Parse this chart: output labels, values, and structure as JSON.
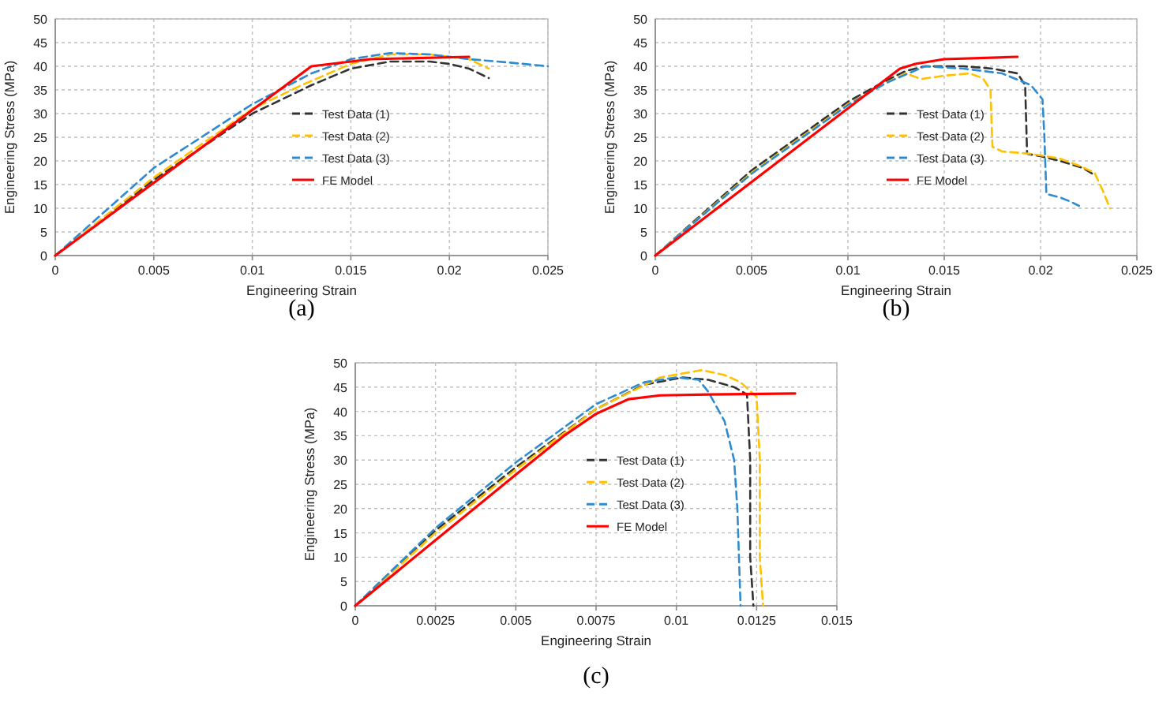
{
  "chart_data": [
    {
      "type": "line",
      "title": "(a)",
      "xlabel": "Engineering Strain",
      "ylabel": "Engineering Stress (MPa)",
      "xlim": [
        0,
        0.025
      ],
      "xticks": [
        0,
        0.005,
        0.01,
        0.015,
        0.02,
        0.025
      ],
      "ylim": [
        0,
        50
      ],
      "yticks": [
        0,
        5,
        10,
        15,
        20,
        25,
        30,
        35,
        40,
        45,
        50
      ],
      "grid": true,
      "legend": "center",
      "series": [
        {
          "name": "Test Data (1)",
          "color": "#333333",
          "line_style": "dashed",
          "x": [
            0,
            0.005,
            0.01,
            0.013,
            0.015,
            0.017,
            0.019,
            0.02,
            0.021,
            0.022
          ],
          "values": [
            0,
            16,
            30,
            36,
            39.5,
            41,
            41,
            40.5,
            39.5,
            37.5
          ]
        },
        {
          "name": "Test Data (2)",
          "color": "#ffc000",
          "line_style": "dashed",
          "x": [
            0,
            0.005,
            0.01,
            0.0125,
            0.015,
            0.017,
            0.019,
            0.021,
            0.022
          ],
          "values": [
            0,
            16.5,
            31,
            36,
            40.5,
            42.5,
            42.5,
            41.5,
            39.5
          ]
        },
        {
          "name": "Test Data (3)",
          "color": "#2e8bd0",
          "line_style": "dashed",
          "x": [
            0,
            0.005,
            0.01,
            0.013,
            0.015,
            0.017,
            0.019,
            0.021,
            0.023,
            0.025
          ],
          "values": [
            0,
            18.5,
            32,
            38.5,
            41.5,
            42.8,
            42.5,
            41.5,
            40.8,
            40
          ]
        },
        {
          "name": "FE Model",
          "color": "#ff0000",
          "line_style": "solid",
          "x": [
            0,
            0.013,
            0.016,
            0.021
          ],
          "values": [
            0,
            40,
            41.5,
            42
          ]
        }
      ]
    },
    {
      "type": "line",
      "title": "(b)",
      "xlabel": "Engineering Strain",
      "ylabel": "Engineering Stress (MPa)",
      "xlim": [
        0,
        0.025
      ],
      "xticks": [
        0,
        0.005,
        0.01,
        0.015,
        0.02,
        0.025
      ],
      "ylim": [
        0,
        50
      ],
      "yticks": [
        0,
        5,
        10,
        15,
        20,
        25,
        30,
        35,
        40,
        45,
        50
      ],
      "grid": true,
      "legend": "center",
      "series": [
        {
          "name": "Test Data (1)",
          "color": "#333333",
          "line_style": "dashed",
          "x": [
            0,
            0.005,
            0.01,
            0.012,
            0.013,
            0.014,
            0.016,
            0.0175,
            0.0188,
            0.0192,
            0.0193,
            0.02,
            0.021,
            0.0222,
            0.0228
          ],
          "values": [
            0,
            18,
            32.5,
            37,
            39,
            40,
            40,
            39.5,
            38.5,
            36,
            21.5,
            21,
            20,
            18.5,
            17
          ]
        },
        {
          "name": "Test Data (2)",
          "color": "#ffc000",
          "line_style": "dashed",
          "x": [
            0,
            0.005,
            0.01,
            0.012,
            0.013,
            0.0138,
            0.015,
            0.0163,
            0.017,
            0.0174,
            0.0175,
            0.018,
            0.0195,
            0.021,
            0.022,
            0.0228,
            0.0232,
            0.0236
          ],
          "values": [
            0,
            17.5,
            32,
            36.5,
            38.5,
            37.3,
            38,
            38.5,
            37.5,
            35,
            23,
            22,
            21.5,
            20.5,
            19,
            17.5,
            14,
            10
          ]
        },
        {
          "name": "Test Data (3)",
          "color": "#2e8bd0",
          "line_style": "dashed",
          "x": [
            0,
            0.005,
            0.01,
            0.012,
            0.014,
            0.016,
            0.018,
            0.0195,
            0.0201,
            0.0202,
            0.0203,
            0.021,
            0.0215,
            0.022
          ],
          "values": [
            0,
            17.3,
            31.8,
            36.5,
            40,
            39.5,
            38.5,
            36,
            33,
            25,
            13,
            12.3,
            11.5,
            10.5
          ]
        },
        {
          "name": "FE Model",
          "color": "#ff0000",
          "line_style": "solid",
          "x": [
            0,
            0.0127,
            0.0135,
            0.015,
            0.0188
          ],
          "values": [
            0,
            39.5,
            40.5,
            41.5,
            42
          ]
        }
      ]
    },
    {
      "type": "line",
      "title": "(c)",
      "xlabel": "Engineering Strain",
      "ylabel": "Engineering Stress (MPa)",
      "xlim": [
        0,
        0.015
      ],
      "xticks": [
        0,
        0.0025,
        0.005,
        0.0075,
        0.01,
        0.0125,
        0.015
      ],
      "ylim": [
        0,
        50
      ],
      "yticks": [
        0,
        5,
        10,
        15,
        20,
        25,
        30,
        35,
        40,
        45,
        50
      ],
      "grid": true,
      "legend": "center",
      "series": [
        {
          "name": "Test Data (1)",
          "color": "#333333",
          "line_style": "dashed",
          "x": [
            0,
            0.0025,
            0.005,
            0.0075,
            0.009,
            0.0102,
            0.011,
            0.0118,
            0.0122,
            0.0123,
            0.0123,
            0.0124
          ],
          "values": [
            0,
            15.5,
            28.5,
            40.5,
            45.5,
            47,
            46.5,
            45,
            43.5,
            30,
            10,
            0
          ]
        },
        {
          "name": "Test Data (2)",
          "color": "#ffc000",
          "line_style": "dashed",
          "x": [
            0,
            0.0025,
            0.005,
            0.0075,
            0.0095,
            0.0108,
            0.0115,
            0.012,
            0.0125,
            0.0126,
            0.0126,
            0.0127
          ],
          "values": [
            0,
            15,
            28,
            40.5,
            47,
            48.5,
            47.5,
            46,
            43,
            30,
            10,
            0
          ]
        },
        {
          "name": "Test Data (3)",
          "color": "#2e8bd0",
          "line_style": "dashed",
          "x": [
            0,
            0.0025,
            0.005,
            0.0075,
            0.009,
            0.01,
            0.0107,
            0.011,
            0.0115,
            0.0118,
            0.0119,
            0.012
          ],
          "values": [
            0,
            16,
            29.5,
            41.5,
            46,
            47,
            46.5,
            44,
            38,
            30,
            20,
            0
          ]
        },
        {
          "name": "FE Model",
          "color": "#ff0000",
          "line_style": "solid",
          "x": [
            0,
            0.0025,
            0.005,
            0.0065,
            0.0075,
            0.0085,
            0.0095,
            0.011,
            0.0137
          ],
          "values": [
            0,
            13.5,
            27,
            35,
            39.5,
            42.5,
            43.3,
            43.5,
            43.7
          ]
        }
      ]
    }
  ]
}
